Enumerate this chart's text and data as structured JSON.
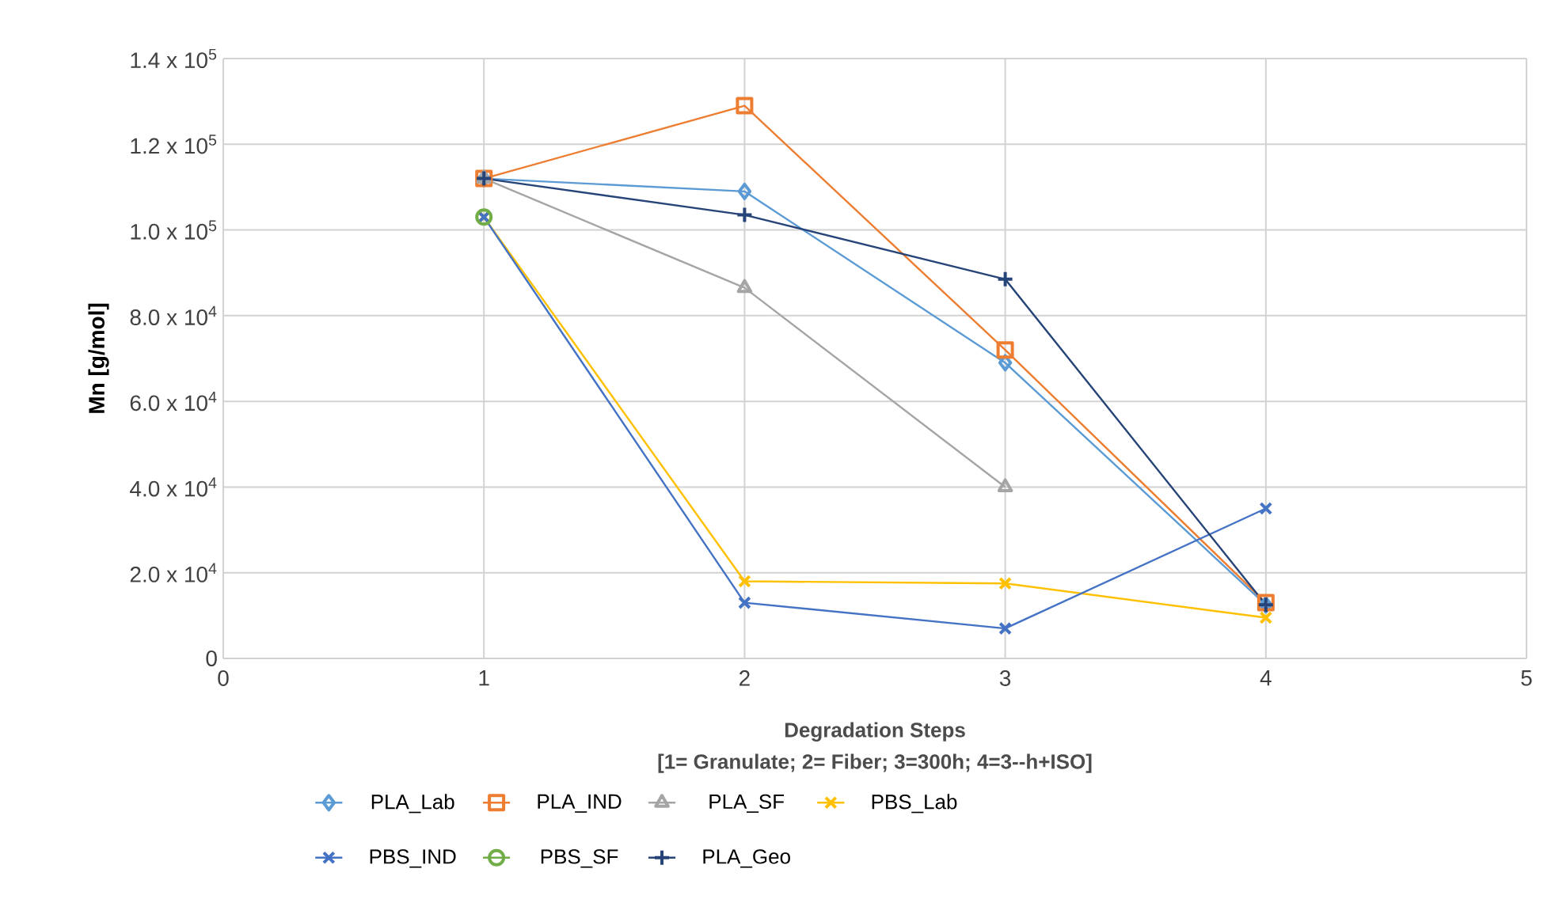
{
  "chart_data": {
    "type": "line",
    "xlabel": "Degradation Steps",
    "ylabel": "Mn [g/mol]",
    "annotations": [
      "[1= Granulate; 2= Fiber; 3=300h; 4=3--h+ISO]"
    ],
    "x": [
      1,
      2,
      3,
      4
    ],
    "series": [
      {
        "name": "PLA_Lab",
        "color": "#5b9bd5",
        "marker": "diamond",
        "values": [
          112000,
          109000,
          69000,
          12500
        ]
      },
      {
        "name": "PLA_IND",
        "color": "#ed7d31",
        "marker": "square",
        "values": [
          112000,
          129000,
          72000,
          13000
        ]
      },
      {
        "name": "PLA_SF",
        "color": "#a5a5a5",
        "marker": "triangle",
        "values": [
          112000,
          86500,
          40000,
          null
        ]
      },
      {
        "name": "PBS_Lab",
        "color": "#ffc000",
        "marker": "cross",
        "values": [
          103000,
          18000,
          17500,
          9500
        ]
      },
      {
        "name": "PBS_IND",
        "color": "#4472c4",
        "marker": "cross",
        "values": [
          103000,
          13000,
          7000,
          35000
        ]
      },
      {
        "name": "PBS_SF",
        "color": "#70ad47",
        "marker": "circle",
        "values": [
          103000,
          null,
          null,
          null
        ]
      },
      {
        "name": "PLA_Geo",
        "color": "#264478",
        "marker": "plus",
        "values": [
          112000,
          103500,
          88500,
          12500
        ]
      }
    ],
    "xlim": [
      0,
      5
    ],
    "xticks": [
      0,
      1,
      2,
      3,
      4,
      5
    ],
    "ylim": [
      0,
      140000
    ],
    "yticks": [
      0,
      {
        "value": 20000,
        "label": "2.0 x 10$^{4}$"
      },
      {
        "value": 40000,
        "label": "4.0 x 10$^{4}$"
      },
      {
        "value": 60000,
        "label": "6.0 x 10$^{4}$"
      },
      {
        "value": 80000,
        "label": "8.0 x 10$^{4}$"
      },
      {
        "value": 100000,
        "label": "1.0 x 10$^{5}$"
      },
      {
        "value": 120000,
        "label": "1.2 x 10$^{5}$"
      },
      {
        "value": 140000,
        "label": "1.4 x 10$^{5}$"
      }
    ],
    "grid": true,
    "legend": "bottom",
    "line_style": "solid"
  }
}
